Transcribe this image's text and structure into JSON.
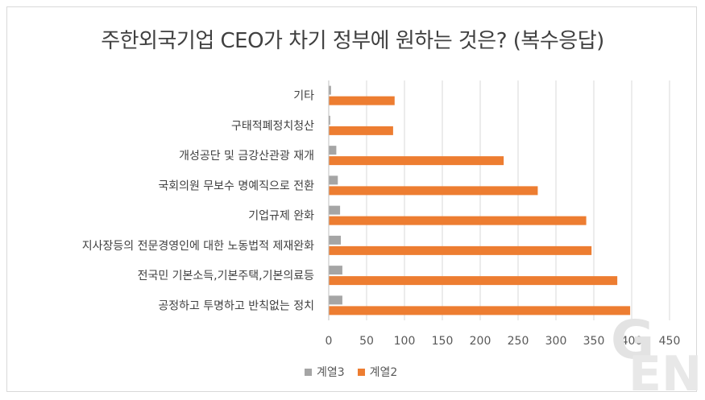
{
  "chart_data": {
    "type": "bar",
    "orientation": "horizontal",
    "title": "주한외국기업 CEO가 차기 정부에 원하는 것은? (복수응답)",
    "categories": [
      "기타",
      "구태적폐정치청산",
      "개성공단 및 금강산관광 재개",
      "국회의원 무보수 명예직으로 전환",
      "기업규제 완화",
      "지사장등의 전문경영인에 대한 노동법적 제재완화",
      "전국민 기본소득,기본주택,기본의료등",
      "공정하고 투명하고 반칙없는 정치"
    ],
    "series": [
      {
        "name": "계열3",
        "color": "#a5a5a5",
        "values": [
          3,
          2,
          10,
          12,
          15,
          16,
          18,
          18
        ]
      },
      {
        "name": "계열2",
        "color": "#ed7d31",
        "values": [
          87,
          85,
          231,
          276,
          340,
          347,
          381,
          398
        ]
      }
    ],
    "xlim": [
      0,
      450
    ],
    "xticks": [
      "0",
      "50",
      "100",
      "150",
      "200",
      "250",
      "300",
      "350",
      "400",
      "450"
    ],
    "grid": true,
    "legend": "bottom"
  },
  "watermark": {
    "text": "GEN"
  }
}
